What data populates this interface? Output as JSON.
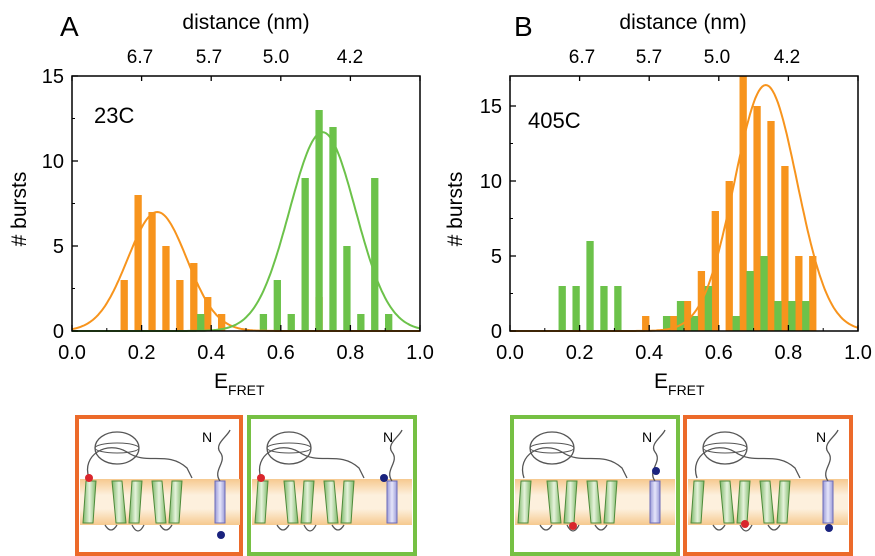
{
  "panels": [
    {
      "letter": "A",
      "top_axis_label": "distance (nm)",
      "top_ticks": [
        "6.7",
        "5.7",
        "5.0",
        "4.2"
      ],
      "ylabel": "# bursts",
      "xlabel_main": "E",
      "xlabel_sub": "FRET",
      "annotation": "23C",
      "cartoon_N": [
        "N",
        "N"
      ]
    },
    {
      "letter": "B",
      "top_axis_label": "distance (nm)",
      "top_ticks": [
        "6.7",
        "5.7",
        "5.0",
        "4.2"
      ],
      "ylabel": "# bursts",
      "xlabel_main": "E",
      "xlabel_sub": "FRET",
      "annotation": "405C",
      "cartoon_N": [
        "N",
        "N"
      ]
    }
  ],
  "colors": {
    "orange": "#f7941d",
    "green": "#6cc24a",
    "orange_frame": "#ec6a2a",
    "green_frame": "#76c043"
  },
  "chart_data": [
    {
      "type": "bar",
      "xlabel": "E FRET",
      "ylabel": "# bursts",
      "xlim": [
        0.0,
        1.0
      ],
      "ylim": [
        0,
        15
      ],
      "x_ticks": [
        "0.0",
        "0.2",
        "0.4",
        "0.6",
        "0.8",
        "1.0"
      ],
      "y_ticks": [
        "0",
        "5",
        "10",
        "15"
      ],
      "top_axis": {
        "label": "distance (nm)",
        "ticks": [
          "6.7",
          "5.7",
          "5.0",
          "4.2"
        ]
      },
      "series": [
        {
          "color": "#f7941d",
          "x": [
            0.15,
            0.19,
            0.23,
            0.27,
            0.31,
            0.35,
            0.39,
            0.43,
            0.71
          ],
          "values": [
            3,
            8,
            7,
            5,
            3,
            4,
            2,
            1,
            2
          ]
        },
        {
          "color": "#6cc24a",
          "x": [
            0.37,
            0.55,
            0.59,
            0.63,
            0.67,
            0.71,
            0.75,
            0.79,
            0.83,
            0.87,
            0.91
          ],
          "values": [
            1,
            1,
            3,
            1,
            9,
            13,
            12,
            5,
            1,
            9,
            1
          ]
        }
      ],
      "fits": [
        {
          "color": "#f7941d",
          "amplitude": 7,
          "center": 0.245,
          "sigma": 0.085
        },
        {
          "color": "#6cc24a",
          "amplitude": 11.7,
          "center": 0.72,
          "sigma": 0.095
        }
      ]
    },
    {
      "type": "bar",
      "xlabel": "E FRET",
      "ylabel": "# bursts",
      "xlim": [
        0.0,
        1.0
      ],
      "ylim": [
        0,
        17
      ],
      "x_ticks": [
        "0.0",
        "0.2",
        "0.4",
        "0.6",
        "0.8",
        "1.0"
      ],
      "y_ticks": [
        "0",
        "5",
        "10",
        "15"
      ],
      "top_axis": {
        "label": "distance (nm)",
        "ticks": [
          "6.7",
          "5.7",
          "5.0",
          "4.2"
        ]
      },
      "series": [
        {
          "color": "#f7941d",
          "x": [
            0.39,
            0.47,
            0.51,
            0.55,
            0.59,
            0.63,
            0.67,
            0.71,
            0.75,
            0.79,
            0.83,
            0.87
          ],
          "values": [
            1,
            1,
            2,
            4,
            8,
            10,
            17,
            15,
            14,
            11,
            5,
            5
          ]
        },
        {
          "color": "#6cc24a",
          "x": [
            0.15,
            0.19,
            0.23,
            0.27,
            0.31,
            0.45,
            0.49,
            0.53,
            0.57,
            0.65,
            0.69,
            0.73,
            0.77,
            0.81,
            0.85
          ],
          "values": [
            3,
            3,
            6,
            3,
            3,
            1,
            2,
            1,
            3,
            1,
            4,
            5,
            2,
            2,
            2
          ]
        }
      ],
      "fits": [
        {
          "color": "#f7941d",
          "amplitude": 16.4,
          "center": 0.735,
          "sigma": 0.09
        }
      ]
    }
  ]
}
